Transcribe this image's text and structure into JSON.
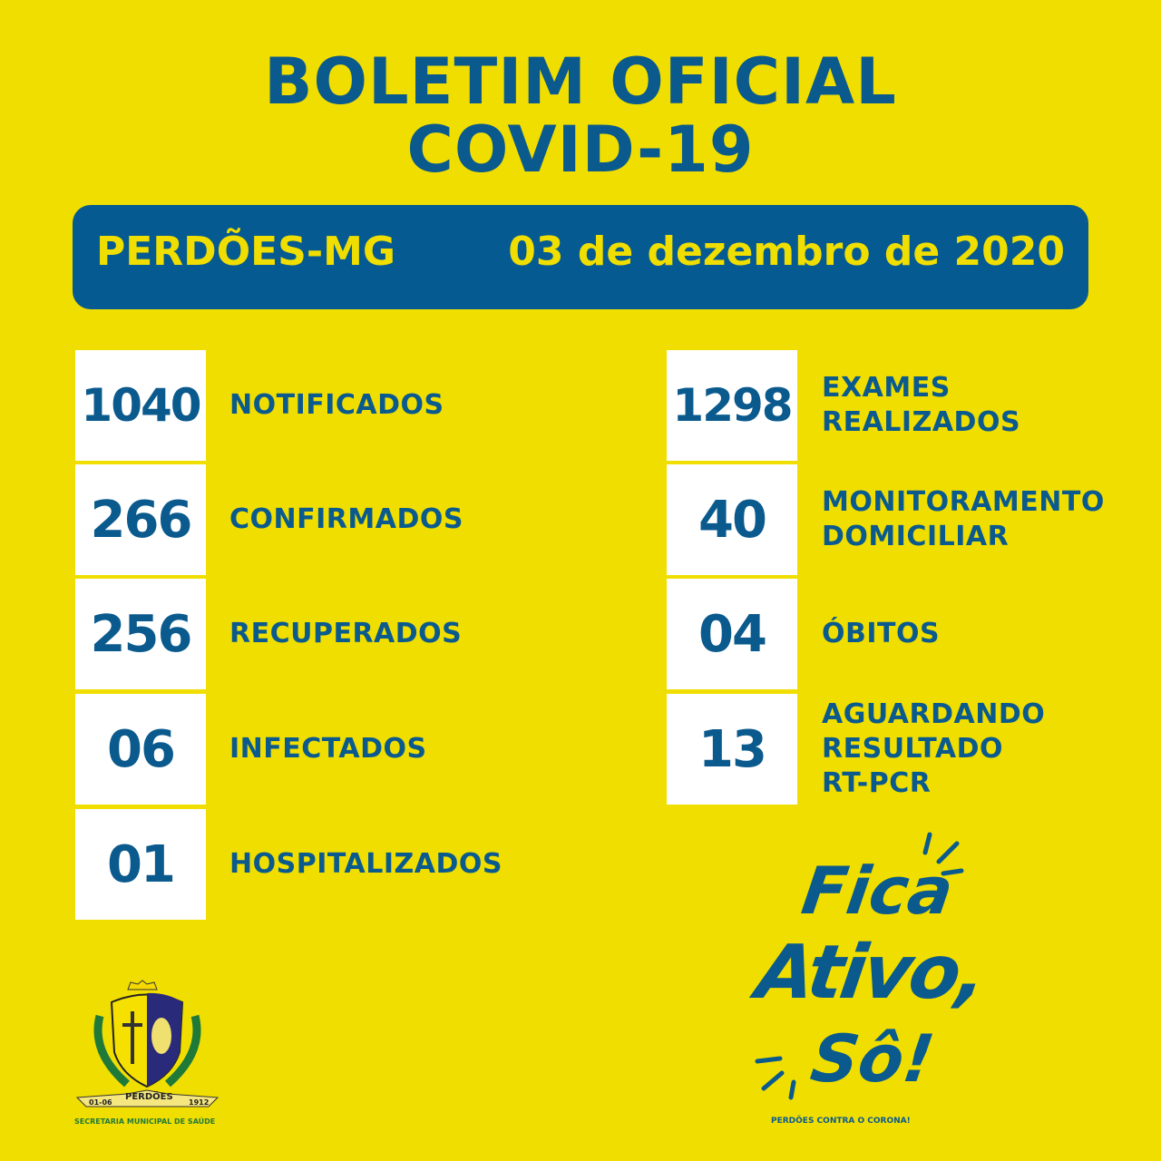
{
  "header": {
    "title_line1": "BOLETIM OFICIAL",
    "title_line2": "COVID-19"
  },
  "banner": {
    "city": "PERDÕES-MG",
    "date": "03 de dezembro de 2020"
  },
  "left_stats": [
    {
      "value": "1040",
      "label": "NOTIFICADOS"
    },
    {
      "value": "266",
      "label": "CONFIRMADOS"
    },
    {
      "value": "256",
      "label": "RECUPERADOS"
    },
    {
      "value": "06",
      "label": "INFECTADOS"
    },
    {
      "value": "01",
      "label": "HOSPITALIZADOS"
    }
  ],
  "right_stats": [
    {
      "value": "1298",
      "label": "EXAMES\nREALIZADOS"
    },
    {
      "value": "40",
      "label": "MONITORAMENTO\nDOMICILIAR"
    },
    {
      "value": "04",
      "label": "ÓBITOS"
    },
    {
      "value": "13",
      "label": "AGUARDANDO\nRESULTADO\nRT-PCR"
    }
  ],
  "footer": {
    "crest_banner": {
      "left": "01-06",
      "center": "PERDÕES",
      "right": "1912"
    },
    "secretaria": "SECRETARIA MUNICIPAL DE SAÚDE",
    "slogan": [
      "Fica",
      "Ativo,",
      "Sô!"
    ],
    "slogan_sub": "PERDÕES CONTRA O CORONA!"
  },
  "colors": {
    "background": "#F0DE00",
    "primary": "#055A91",
    "box": "#FFFFFF"
  }
}
